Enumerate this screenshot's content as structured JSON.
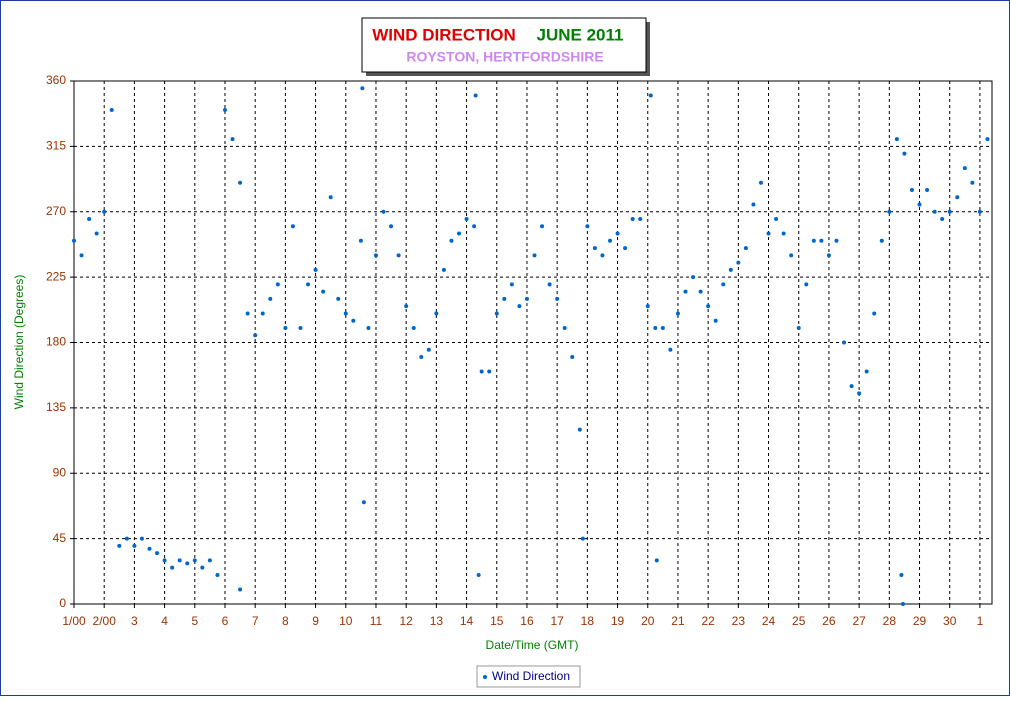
{
  "chart_data": {
    "type": "scatter",
    "title": "WIND DIRECTION",
    "title_date": "JUNE 2011",
    "subtitle": "ROYSTON, HERTFORDSHIRE",
    "x_label": "Date/Time (GMT)",
    "y_label": "Wind Direction (Degrees)",
    "xlim": [
      1,
      31.4
    ],
    "ylim": [
      0,
      360
    ],
    "xticks": [
      {
        "value": 1,
        "label": "1/00"
      },
      {
        "value": 2,
        "label": "2/00"
      },
      3,
      4,
      5,
      6,
      7,
      8,
      9,
      10,
      11,
      12,
      13,
      14,
      15,
      16,
      17,
      18,
      19,
      20,
      21,
      22,
      23,
      24,
      25,
      26,
      27,
      28,
      29,
      30,
      {
        "value": 31,
        "label": "1"
      }
    ],
    "yticks": [
      0,
      45,
      90,
      135,
      180,
      225,
      270,
      315,
      360
    ],
    "grid": true,
    "legend": "bottom",
    "series": [
      {
        "name": "Wind Direction",
        "color": "#0066cc",
        "x": [
          1,
          1.25,
          1.5,
          1.75,
          2,
          2.25,
          2.5,
          2.75,
          3,
          3.25,
          3.5,
          3.75,
          4,
          4.25,
          4.5,
          4.75,
          5,
          5.25,
          5.5,
          5.75,
          6,
          6.25,
          6.5,
          6.75,
          7,
          7.25,
          7.5,
          7.75,
          8,
          8.25,
          8.5,
          8.75,
          9,
          9.25,
          9.5,
          9.75,
          10,
          10.25,
          10.5,
          10.75,
          11,
          11.25,
          11.5,
          11.75,
          12,
          12.25,
          12.5,
          12.75,
          13,
          13.25,
          13.5,
          13.75,
          14,
          14.25,
          14.5,
          14.75,
          15,
          15.25,
          15.5,
          15.75,
          16,
          16.25,
          16.5,
          16.75,
          17,
          17.25,
          17.5,
          17.75,
          18,
          18.25,
          18.5,
          18.75,
          19,
          19.25,
          19.5,
          19.75,
          20,
          20.25,
          20.5,
          20.75,
          21,
          21.25,
          21.5,
          21.75,
          22,
          22.25,
          22.5,
          22.75,
          23,
          23.25,
          23.5,
          23.75,
          24,
          24.25,
          24.5,
          24.75,
          25,
          25.25,
          25.5,
          25.75,
          26,
          26.25,
          26.5,
          26.75,
          27,
          27.25,
          27.5,
          27.75,
          28,
          28.25,
          28.5,
          28.75,
          29,
          29.25,
          29.5,
          29.75,
          30,
          30.25,
          30.5,
          30.75,
          31,
          31.25,
          10.55,
          10.6,
          14.3,
          14.4,
          20.1,
          20.3,
          28.4,
          28.45,
          6.5,
          17.85
        ],
        "values": [
          250,
          240,
          265,
          255,
          270,
          340,
          40,
          45,
          40,
          45,
          38,
          35,
          30,
          25,
          30,
          28,
          30,
          25,
          30,
          20,
          340,
          320,
          290,
          200,
          185,
          200,
          210,
          220,
          190,
          260,
          190,
          220,
          230,
          215,
          280,
          210,
          200,
          195,
          250,
          190,
          240,
          270,
          260,
          240,
          205,
          190,
          170,
          175,
          200,
          230,
          250,
          255,
          265,
          260,
          160,
          160,
          200,
          210,
          220,
          205,
          210,
          240,
          260,
          220,
          210,
          190,
          170,
          120,
          260,
          245,
          240,
          250,
          255,
          245,
          265,
          265,
          205,
          190,
          190,
          175,
          200,
          215,
          225,
          215,
          205,
          195,
          220,
          230,
          235,
          245,
          275,
          290,
          255,
          265,
          255,
          240,
          190,
          220,
          250,
          250,
          240,
          250,
          180,
          150,
          145,
          160,
          200,
          250,
          270,
          320,
          310,
          285,
          275,
          285,
          270,
          265,
          270,
          280,
          300,
          290,
          270,
          320,
          355,
          70,
          350,
          20,
          350,
          30,
          20,
          0,
          10,
          45
        ]
      }
    ]
  }
}
